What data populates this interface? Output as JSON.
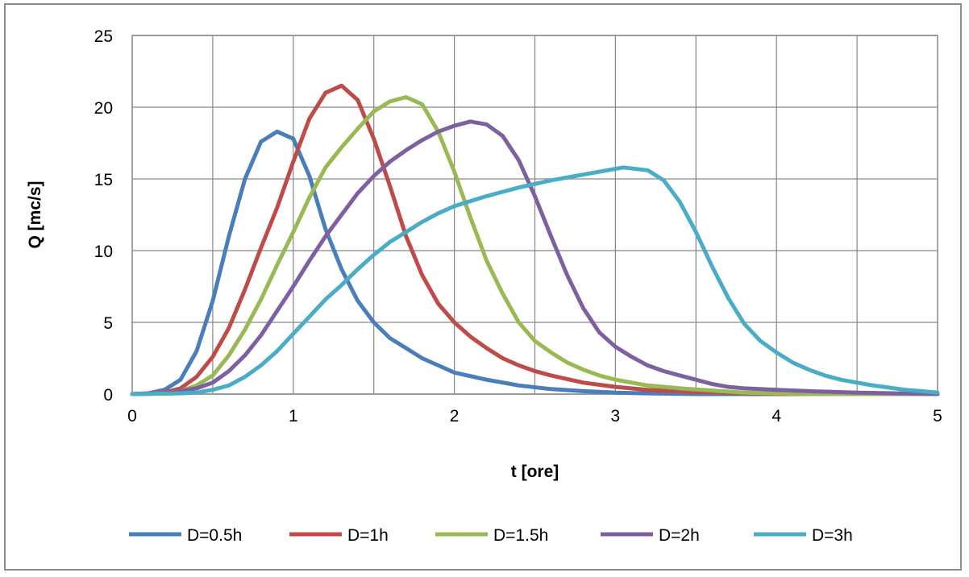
{
  "chart_data": {
    "type": "line",
    "title": "",
    "xlabel": "t [ore]",
    "ylabel": "Q [mc/s]",
    "xlim": [
      0,
      5
    ],
    "ylim": [
      0,
      25
    ],
    "xticks": [
      0,
      1,
      2,
      3,
      4,
      5
    ],
    "yticks": [
      0,
      5,
      10,
      15,
      20,
      25
    ],
    "grid": true,
    "legend_position": "bottom",
    "series": [
      {
        "name": "D=0.5h",
        "color": "#4a7ebb",
        "points": [
          [
            0,
            0
          ],
          [
            0.1,
            0.05
          ],
          [
            0.2,
            0.3
          ],
          [
            0.3,
            1.0
          ],
          [
            0.4,
            3.0
          ],
          [
            0.5,
            6.5
          ],
          [
            0.6,
            11.0
          ],
          [
            0.7,
            15.0
          ],
          [
            0.8,
            17.6
          ],
          [
            0.9,
            18.3
          ],
          [
            1.0,
            17.8
          ],
          [
            1.1,
            15.2
          ],
          [
            1.2,
            11.5
          ],
          [
            1.3,
            8.7
          ],
          [
            1.4,
            6.5
          ],
          [
            1.5,
            5.0
          ],
          [
            1.6,
            3.9
          ],
          [
            1.7,
            3.2
          ],
          [
            1.8,
            2.5
          ],
          [
            1.9,
            2.0
          ],
          [
            2.0,
            1.5
          ],
          [
            2.2,
            1.0
          ],
          [
            2.4,
            0.6
          ],
          [
            2.6,
            0.35
          ],
          [
            2.8,
            0.2
          ],
          [
            3.0,
            0.1
          ],
          [
            3.2,
            0.05
          ],
          [
            3.5,
            0
          ],
          [
            5,
            0
          ]
        ]
      },
      {
        "name": "D=1h",
        "color": "#be4b48",
        "points": [
          [
            0,
            0
          ],
          [
            0.2,
            0.1
          ],
          [
            0.3,
            0.4
          ],
          [
            0.4,
            1.2
          ],
          [
            0.5,
            2.6
          ],
          [
            0.6,
            4.6
          ],
          [
            0.7,
            7.3
          ],
          [
            0.8,
            10.2
          ],
          [
            0.9,
            13.0
          ],
          [
            1.0,
            16.2
          ],
          [
            1.1,
            19.2
          ],
          [
            1.2,
            21.0
          ],
          [
            1.3,
            21.5
          ],
          [
            1.4,
            20.5
          ],
          [
            1.5,
            17.8
          ],
          [
            1.6,
            14.5
          ],
          [
            1.7,
            11.0
          ],
          [
            1.8,
            8.3
          ],
          [
            1.9,
            6.3
          ],
          [
            2.0,
            5.0
          ],
          [
            2.1,
            4.0
          ],
          [
            2.2,
            3.2
          ],
          [
            2.3,
            2.5
          ],
          [
            2.4,
            2.0
          ],
          [
            2.5,
            1.6
          ],
          [
            2.6,
            1.3
          ],
          [
            2.8,
            0.8
          ],
          [
            3.0,
            0.5
          ],
          [
            3.2,
            0.3
          ],
          [
            3.5,
            0.15
          ],
          [
            4.0,
            0
          ],
          [
            5,
            0
          ]
        ]
      },
      {
        "name": "D=1.5h",
        "color": "#98b954",
        "points": [
          [
            0,
            0
          ],
          [
            0.2,
            0.05
          ],
          [
            0.3,
            0.2
          ],
          [
            0.4,
            0.6
          ],
          [
            0.5,
            1.3
          ],
          [
            0.6,
            2.7
          ],
          [
            0.7,
            4.5
          ],
          [
            0.8,
            6.6
          ],
          [
            0.9,
            9.0
          ],
          [
            1.0,
            11.3
          ],
          [
            1.1,
            13.7
          ],
          [
            1.2,
            15.8
          ],
          [
            1.3,
            17.2
          ],
          [
            1.4,
            18.5
          ],
          [
            1.5,
            19.7
          ],
          [
            1.6,
            20.4
          ],
          [
            1.7,
            20.7
          ],
          [
            1.8,
            20.2
          ],
          [
            1.9,
            18.3
          ],
          [
            2.0,
            15.5
          ],
          [
            2.1,
            12.3
          ],
          [
            2.2,
            9.3
          ],
          [
            2.3,
            7.0
          ],
          [
            2.4,
            5.0
          ],
          [
            2.5,
            3.7
          ],
          [
            2.6,
            2.9
          ],
          [
            2.7,
            2.2
          ],
          [
            2.8,
            1.7
          ],
          [
            2.9,
            1.3
          ],
          [
            3.0,
            1.0
          ],
          [
            3.2,
            0.6
          ],
          [
            3.4,
            0.4
          ],
          [
            3.6,
            0.25
          ],
          [
            3.8,
            0.1
          ],
          [
            4.0,
            0.05
          ],
          [
            4.2,
            0
          ],
          [
            5,
            0
          ]
        ]
      },
      {
        "name": "D=2h",
        "color": "#7d60a0",
        "points": [
          [
            0,
            0
          ],
          [
            0.2,
            0.05
          ],
          [
            0.3,
            0.2
          ],
          [
            0.4,
            0.4
          ],
          [
            0.5,
            0.8
          ],
          [
            0.6,
            1.6
          ],
          [
            0.7,
            2.7
          ],
          [
            0.8,
            4.1
          ],
          [
            0.9,
            5.8
          ],
          [
            1.0,
            7.5
          ],
          [
            1.1,
            9.3
          ],
          [
            1.2,
            11.0
          ],
          [
            1.3,
            12.5
          ],
          [
            1.4,
            14.0
          ],
          [
            1.5,
            15.2
          ],
          [
            1.6,
            16.2
          ],
          [
            1.7,
            17.0
          ],
          [
            1.8,
            17.7
          ],
          [
            1.9,
            18.3
          ],
          [
            2.0,
            18.7
          ],
          [
            2.1,
            19.0
          ],
          [
            2.2,
            18.8
          ],
          [
            2.3,
            18.0
          ],
          [
            2.4,
            16.3
          ],
          [
            2.5,
            13.8
          ],
          [
            2.6,
            11.0
          ],
          [
            2.7,
            8.3
          ],
          [
            2.8,
            6.0
          ],
          [
            2.9,
            4.3
          ],
          [
            3.0,
            3.3
          ],
          [
            3.1,
            2.6
          ],
          [
            3.2,
            2.0
          ],
          [
            3.3,
            1.6
          ],
          [
            3.4,
            1.3
          ],
          [
            3.5,
            1.0
          ],
          [
            3.6,
            0.7
          ],
          [
            3.7,
            0.5
          ],
          [
            3.8,
            0.4
          ],
          [
            4.0,
            0.3
          ],
          [
            4.2,
            0.2
          ],
          [
            4.5,
            0.1
          ],
          [
            5,
            0
          ]
        ]
      },
      {
        "name": "D=3h",
        "color": "#4bacc6",
        "points": [
          [
            0,
            0
          ],
          [
            0.3,
            0.05
          ],
          [
            0.4,
            0.1
          ],
          [
            0.5,
            0.3
          ],
          [
            0.6,
            0.6
          ],
          [
            0.7,
            1.2
          ],
          [
            0.8,
            2.0
          ],
          [
            0.9,
            3.0
          ],
          [
            1.0,
            4.2
          ],
          [
            1.1,
            5.4
          ],
          [
            1.2,
            6.6
          ],
          [
            1.3,
            7.6
          ],
          [
            1.4,
            8.7
          ],
          [
            1.5,
            9.7
          ],
          [
            1.6,
            10.6
          ],
          [
            1.7,
            11.3
          ],
          [
            1.8,
            12.0
          ],
          [
            1.9,
            12.6
          ],
          [
            2.0,
            13.1
          ],
          [
            2.2,
            13.8
          ],
          [
            2.4,
            14.4
          ],
          [
            2.6,
            14.9
          ],
          [
            2.8,
            15.3
          ],
          [
            3.0,
            15.7
          ],
          [
            3.05,
            15.8
          ],
          [
            3.2,
            15.6
          ],
          [
            3.3,
            14.9
          ],
          [
            3.4,
            13.4
          ],
          [
            3.5,
            11.3
          ],
          [
            3.6,
            8.9
          ],
          [
            3.7,
            6.7
          ],
          [
            3.8,
            4.9
          ],
          [
            3.9,
            3.7
          ],
          [
            4.0,
            2.9
          ],
          [
            4.1,
            2.2
          ],
          [
            4.2,
            1.7
          ],
          [
            4.3,
            1.3
          ],
          [
            4.4,
            1.0
          ],
          [
            4.5,
            0.8
          ],
          [
            4.6,
            0.6
          ],
          [
            4.7,
            0.45
          ],
          [
            4.8,
            0.3
          ],
          [
            4.9,
            0.2
          ],
          [
            5.0,
            0.1
          ]
        ]
      }
    ]
  }
}
